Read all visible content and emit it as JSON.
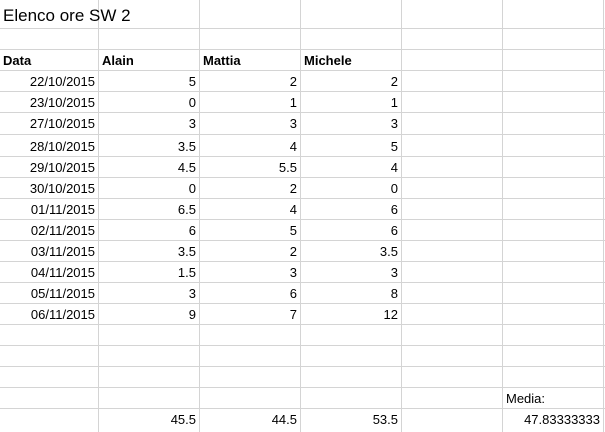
{
  "title": "Elenco ore SW 2",
  "headers": [
    "Data",
    "Alain",
    "Mattia",
    "Michele"
  ],
  "rows": [
    [
      "22/10/2015",
      "5",
      "2",
      "2"
    ],
    [
      "23/10/2015",
      "0",
      "1",
      "1"
    ],
    [
      "27/10/2015",
      "3",
      "3",
      "3"
    ],
    [
      "28/10/2015",
      "3.5",
      "4",
      "5"
    ],
    [
      "29/10/2015",
      "4.5",
      "5.5",
      "4"
    ],
    [
      "30/10/2015",
      "0",
      "2",
      "0"
    ],
    [
      "01/11/2015",
      "6.5",
      "4",
      "6"
    ],
    [
      "02/11/2015",
      "6",
      "5",
      "6"
    ],
    [
      "03/11/2015",
      "3.5",
      "2",
      "3.5"
    ],
    [
      "04/11/2015",
      "1.5",
      "3",
      "3"
    ],
    [
      "05/11/2015",
      "3",
      "6",
      "8"
    ],
    [
      "06/11/2015",
      "9",
      "7",
      "12"
    ]
  ],
  "media_label": "Media:",
  "totals": [
    "45.5",
    "44.5",
    "53.5"
  ],
  "media_value": "47.83333333"
}
